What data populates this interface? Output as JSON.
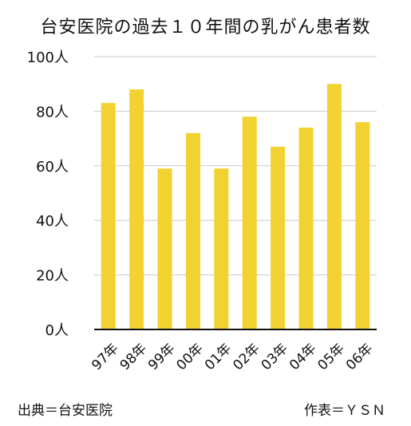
{
  "chart_data": {
    "type": "bar",
    "title": "台安医院の過去１０年間の乳がん患者数",
    "categories": [
      "97年",
      "98年",
      "99年",
      "00年",
      "01年",
      "02年",
      "03年",
      "04年",
      "05年",
      "06年"
    ],
    "values": [
      83,
      88,
      59,
      72,
      59,
      78,
      67,
      74,
      90,
      76
    ],
    "ylim": [
      0,
      100
    ],
    "y_ticks": [
      0,
      20,
      40,
      60,
      80,
      100
    ],
    "y_tick_labels": [
      "0人",
      "20人",
      "40人",
      "60人",
      "80人",
      "100人"
    ],
    "bar_color": "#F2D230",
    "grid": true,
    "xlabel": "",
    "ylabel": ""
  },
  "footer": {
    "source": "出典＝台安医院",
    "author": "作表＝ＹＳＮ"
  }
}
